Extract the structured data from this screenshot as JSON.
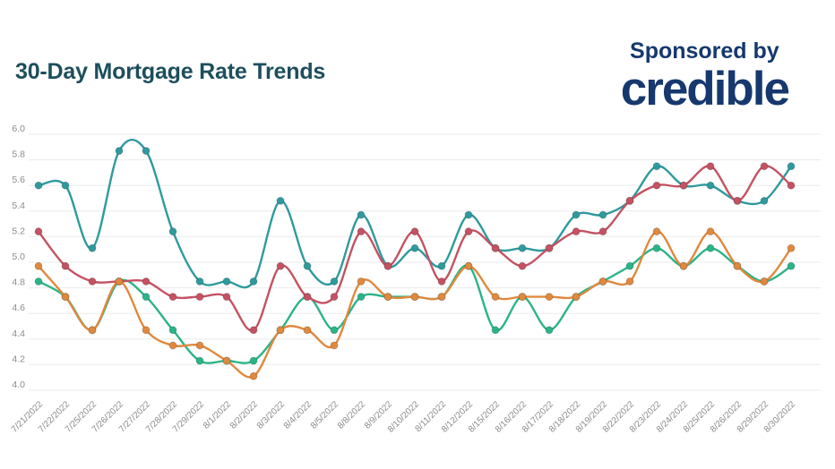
{
  "header": {
    "title": "30-Day Mortgage Rate Trends",
    "title_color": "#1D4E5C",
    "sponsor": {
      "line1": "Sponsored by",
      "logo": "credible",
      "color": "#16386E"
    }
  },
  "chart_data": {
    "type": "line",
    "title": "30-Day Mortgage Rate Trends",
    "xlabel": "",
    "ylabel": "",
    "ylim": [
      4.0,
      6.0
    ],
    "ytick_step": 0.2,
    "y_ticks": [
      "6.0",
      "5.8",
      "5.6",
      "5.4",
      "5.2",
      "5.0",
      "4.8",
      "4.6",
      "4.4",
      "4.2",
      "4.0"
    ],
    "grid": true,
    "legend_position": "none",
    "x": [
      "7/21/2022",
      "7/22/2022",
      "7/25/2022",
      "7/26/2022",
      "7/27/2022",
      "7/28/2022",
      "7/29/2022",
      "8/1/2022",
      "8/2/2022",
      "8/3/2022",
      "8/4/2022",
      "8/5/2022",
      "8/8/2022",
      "8/9/2022",
      "8/10/2022",
      "8/11/2022",
      "8/12/2022",
      "8/15/2022",
      "8/16/2022",
      "8/17/2022",
      "8/18/2022",
      "8/19/2022",
      "8/22/2022",
      "8/23/2022",
      "8/24/2022",
      "8/25/2022",
      "8/26/2022",
      "8/29/2022",
      "8/30/2022"
    ],
    "series": [
      {
        "name": "teal",
        "color": "#2F9A9D",
        "values": [
          5.6,
          5.6,
          5.11,
          5.87,
          5.87,
          5.24,
          4.85,
          4.85,
          4.85,
          5.48,
          4.97,
          4.85,
          5.37,
          4.97,
          5.11,
          4.97,
          5.37,
          5.11,
          5.11,
          5.11,
          5.37,
          5.37,
          5.48,
          5.75,
          5.6,
          5.6,
          5.48,
          5.48,
          5.75
        ]
      },
      {
        "name": "green",
        "color": "#2BB488",
        "values": [
          4.85,
          4.73,
          4.47,
          4.85,
          4.73,
          4.47,
          4.23,
          4.23,
          4.23,
          4.47,
          4.73,
          4.47,
          4.73,
          4.73,
          4.73,
          4.73,
          4.97,
          4.47,
          4.73,
          4.47,
          4.73,
          4.85,
          4.97,
          5.11,
          4.97,
          5.11,
          4.97,
          4.85,
          4.97
        ]
      },
      {
        "name": "red",
        "color": "#C45263",
        "values": [
          5.24,
          4.97,
          4.85,
          4.85,
          4.85,
          4.73,
          4.73,
          4.73,
          4.47,
          4.97,
          4.73,
          4.73,
          5.24,
          4.97,
          5.24,
          4.85,
          5.24,
          5.11,
          4.97,
          5.11,
          5.24,
          5.24,
          5.48,
          5.6,
          5.6,
          5.75,
          5.48,
          5.75,
          5.6
        ]
      },
      {
        "name": "orange",
        "color": "#E0893E",
        "values": [
          4.97,
          4.73,
          4.47,
          4.85,
          4.47,
          4.35,
          4.35,
          4.23,
          4.11,
          4.47,
          4.47,
          4.35,
          4.85,
          4.73,
          4.73,
          4.73,
          4.97,
          4.73,
          4.73,
          4.73,
          4.73,
          4.85,
          4.85,
          5.24,
          4.97,
          5.24,
          4.97,
          4.85,
          5.11
        ]
      }
    ],
    "style": {
      "grid_color": "#ebebeb",
      "axis_label_color": "#8C8C8C",
      "line_width": 2.4,
      "point_radius": 4
    }
  }
}
